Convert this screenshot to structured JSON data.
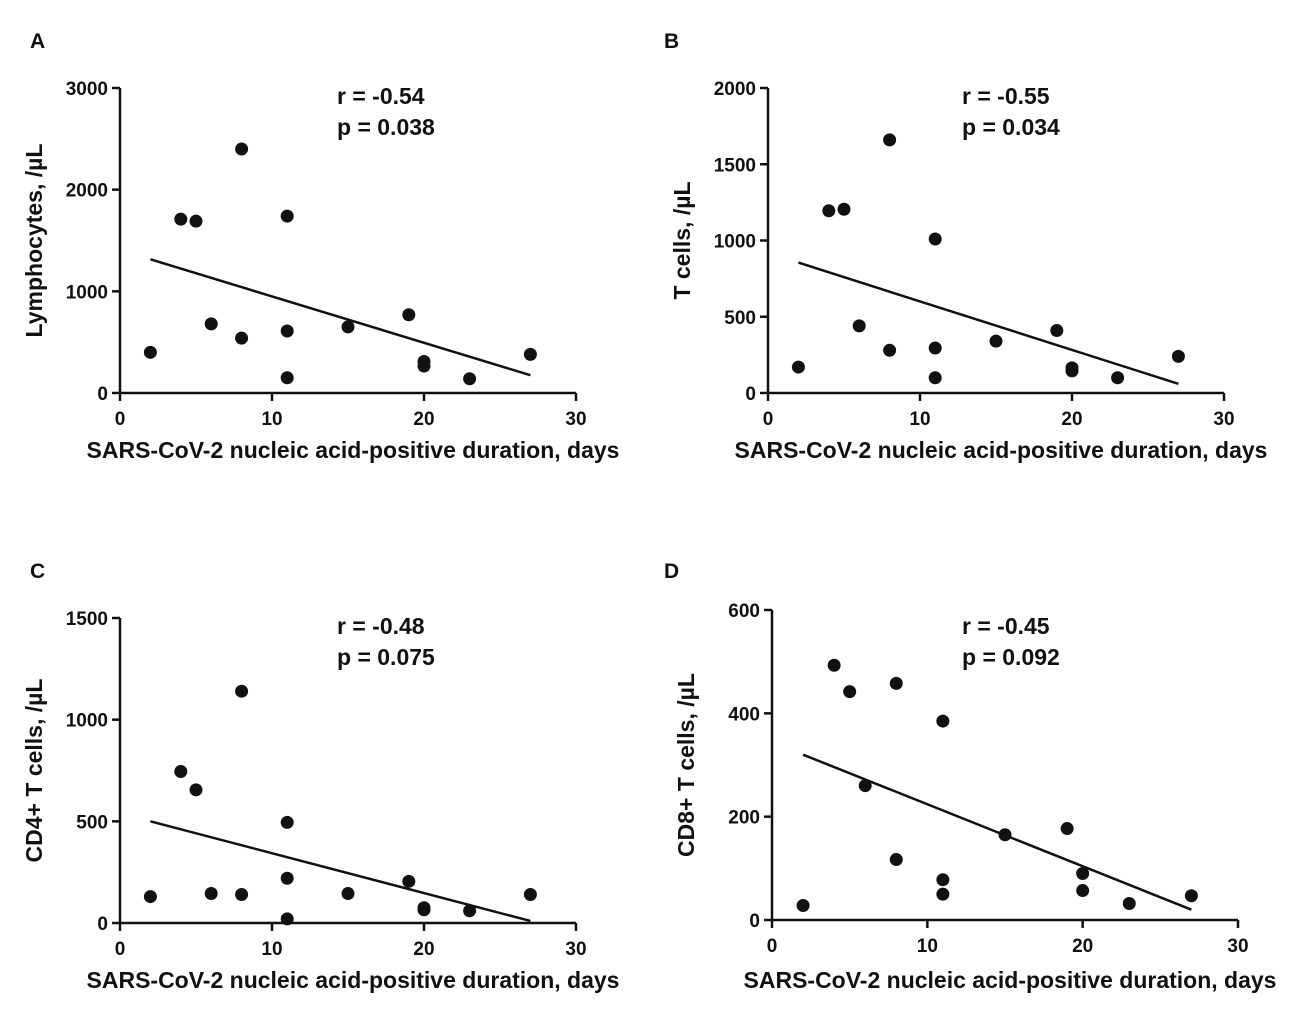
{
  "chart_data": [
    {
      "panel": "A",
      "type": "scatter",
      "xlabel": "SARS-CoV-2 nucleic acid-positive duration, days",
      "ylabel": "Lymphocytes, /µL",
      "xlim": [
        0,
        30
      ],
      "ylim": [
        0,
        3000
      ],
      "xticks": [
        0,
        10,
        20,
        30
      ],
      "yticks": [
        0,
        1000,
        2000,
        3000
      ],
      "annotation_r": "r = -0.54",
      "annotation_p": "p = 0.038",
      "points": [
        [
          2,
          400
        ],
        [
          4,
          1710
        ],
        [
          5,
          1690
        ],
        [
          6,
          680
        ],
        [
          8,
          2400
        ],
        [
          8,
          540
        ],
        [
          11,
          1740
        ],
        [
          11,
          610
        ],
        [
          11,
          150
        ],
        [
          15,
          650
        ],
        [
          19,
          770
        ],
        [
          20,
          310
        ],
        [
          20,
          265
        ],
        [
          23,
          140
        ],
        [
          27,
          380
        ]
      ],
      "fit_line": [
        [
          2,
          1315
        ],
        [
          27,
          175
        ]
      ]
    },
    {
      "panel": "B",
      "type": "scatter",
      "xlabel": "SARS-CoV-2 nucleic acid-positive duration, days",
      "ylabel": "T cells, /µL",
      "xlim": [
        0,
        30
      ],
      "ylim": [
        0,
        2000
      ],
      "xticks": [
        0,
        10,
        20,
        30
      ],
      "yticks": [
        0,
        500,
        1000,
        1500,
        2000
      ],
      "annotation_r": "r = -0.55",
      "annotation_p": "p = 0.034",
      "points": [
        [
          2,
          170
        ],
        [
          4,
          1195
        ],
        [
          5,
          1205
        ],
        [
          6,
          440
        ],
        [
          8,
          1660
        ],
        [
          8,
          280
        ],
        [
          11,
          1010
        ],
        [
          11,
          295
        ],
        [
          11,
          100
        ],
        [
          15,
          340
        ],
        [
          19,
          410
        ],
        [
          20,
          165
        ],
        [
          20,
          145
        ],
        [
          23,
          100
        ],
        [
          27,
          240
        ]
      ],
      "fit_line": [
        [
          2,
          855
        ],
        [
          27,
          60
        ]
      ]
    },
    {
      "panel": "C",
      "type": "scatter",
      "xlabel": "SARS-CoV-2 nucleic acid-positive duration, days",
      "ylabel": "CD4+ T cells, /µL",
      "xlim": [
        0,
        30
      ],
      "ylim": [
        0,
        1500
      ],
      "xticks": [
        0,
        10,
        20,
        30
      ],
      "yticks": [
        0,
        500,
        1000,
        1500
      ],
      "annotation_r": "r = -0.48",
      "annotation_p": "p = 0.075",
      "points": [
        [
          2,
          130
        ],
        [
          4,
          745
        ],
        [
          5,
          655
        ],
        [
          6,
          145
        ],
        [
          8,
          1140
        ],
        [
          8,
          140
        ],
        [
          11,
          495
        ],
        [
          11,
          220
        ],
        [
          11,
          20
        ],
        [
          15,
          145
        ],
        [
          19,
          205
        ],
        [
          20,
          75
        ],
        [
          20,
          65
        ],
        [
          23,
          60
        ],
        [
          27,
          140
        ]
      ],
      "fit_line": [
        [
          2,
          500
        ],
        [
          27,
          10
        ]
      ]
    },
    {
      "panel": "D",
      "type": "scatter",
      "xlabel": "SARS-CoV-2 nucleic acid-positive duration, days",
      "ylabel": "CD8+ T cells, /µL",
      "xlim": [
        0,
        30
      ],
      "ylim": [
        0,
        600
      ],
      "xticks": [
        0,
        10,
        20,
        30
      ],
      "yticks": [
        0,
        200,
        400,
        600
      ],
      "annotation_r": "r = -0.45",
      "annotation_p": "p = 0.092",
      "points": [
        [
          2,
          28
        ],
        [
          4,
          493
        ],
        [
          5,
          442
        ],
        [
          6,
          260
        ],
        [
          8,
          458
        ],
        [
          8,
          117
        ],
        [
          11,
          385
        ],
        [
          11,
          78
        ],
        [
          11,
          50
        ],
        [
          15,
          165
        ],
        [
          19,
          177
        ],
        [
          20,
          90
        ],
        [
          20,
          57
        ],
        [
          23,
          32
        ],
        [
          27,
          47
        ]
      ],
      "fit_line": [
        [
          2,
          320
        ],
        [
          27,
          20
        ]
      ]
    }
  ]
}
